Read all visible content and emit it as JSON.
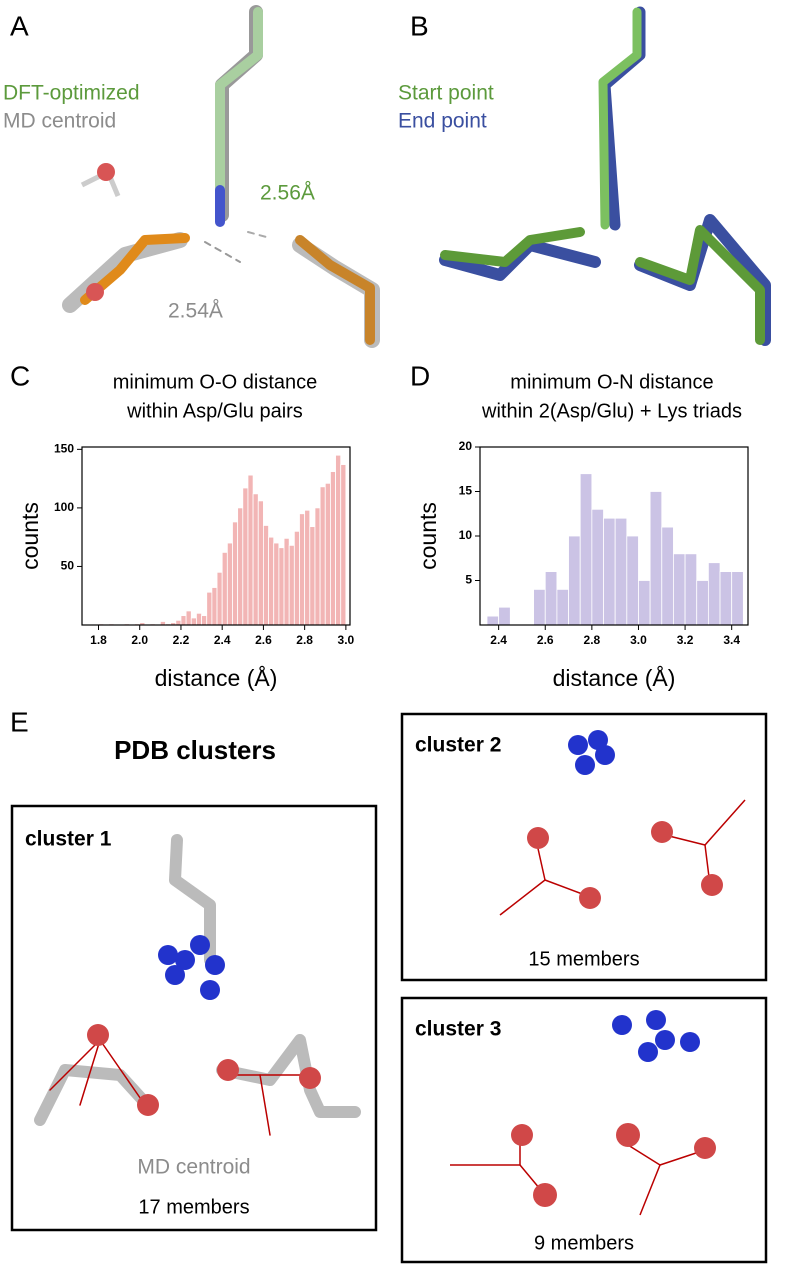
{
  "panel_a": {
    "letter": "A",
    "legend": [
      "DFT-optimized",
      "MD centroid"
    ],
    "distance_green": "2.56Å",
    "distance_gray": "2.54Å"
  },
  "panel_b": {
    "letter": "B",
    "legend": [
      "Start point",
      "End point"
    ]
  },
  "panel_c": {
    "letter": "C"
  },
  "panel_d": {
    "letter": "D"
  },
  "chart_data": [
    {
      "type": "histogram",
      "title": [
        "minimum O-O distance",
        "within Asp/Glu pairs"
      ],
      "x_label": "distance (Å)",
      "y_label": "counts",
      "color": "#f2b5b5",
      "bins": [
        1.75,
        1.775,
        1.8,
        1.825,
        1.85,
        1.875,
        1.9,
        1.925,
        1.95,
        1.975,
        2.0,
        2.025,
        2.05,
        2.075,
        2.1,
        2.125,
        2.15,
        2.175,
        2.2,
        2.225,
        2.25,
        2.275,
        2.3,
        2.325,
        2.35,
        2.375,
        2.4,
        2.425,
        2.45,
        2.475,
        2.5,
        2.525,
        2.55,
        2.575,
        2.6,
        2.625,
        2.65,
        2.675,
        2.7,
        2.725,
        2.75,
        2.775,
        2.8,
        2.825,
        2.85,
        2.875,
        2.9,
        2.925,
        2.95,
        2.975,
        3.0
      ],
      "values": [
        0,
        0,
        1,
        0,
        1,
        0,
        0,
        1,
        0,
        1,
        2,
        0,
        1,
        0,
        3,
        1,
        2,
        4,
        8,
        12,
        6,
        10,
        8,
        28,
        32,
        45,
        62,
        70,
        88,
        100,
        117,
        128,
        112,
        106,
        85,
        75,
        70,
        66,
        74,
        68,
        80,
        95,
        98,
        84,
        100,
        118,
        121,
        131,
        145,
        137
      ],
      "xlim": [
        1.72,
        3.02
      ],
      "ylim": [
        0,
        152
      ],
      "xticks": [
        1.8,
        {
          "value": 2,
          "label": "2.0"
        },
        2.2,
        2.4,
        2.6,
        2.8,
        {
          "value": 3,
          "label": "3.0"
        }
      ],
      "yticks": [
        50,
        100,
        150
      ]
    },
    {
      "type": "histogram",
      "title": [
        "minimum O-N distance",
        "within 2(Asp/Glu) + Lys triads"
      ],
      "x_label": "distance (Å)",
      "y_label": "counts",
      "color": "#cbc3e5",
      "bins": [
        2.35,
        2.4,
        2.45,
        2.5,
        2.55,
        2.6,
        2.65,
        2.7,
        2.75,
        2.8,
        2.85,
        2.9,
        2.95,
        3.0,
        3.05,
        3.1,
        3.15,
        3.2,
        3.25,
        3.3,
        3.35,
        3.4,
        3.45
      ],
      "values": [
        1,
        2,
        0,
        0,
        4,
        6,
        4,
        10,
        17,
        13,
        12,
        12,
        10,
        5,
        15,
        11,
        8,
        8,
        5,
        7,
        6,
        6
      ],
      "xlim": [
        2.32,
        3.47
      ],
      "ylim": [
        0,
        20
      ],
      "xticks": [
        2.4,
        2.6,
        2.8,
        {
          "value": 3,
          "label": "3.0"
        },
        3.2,
        3.4
      ],
      "yticks": [
        5,
        10,
        15,
        20
      ]
    }
  ],
  "panel_e": {
    "letter": "E",
    "title": "PDB clusters",
    "clusters": [
      {
        "label": "cluster 1",
        "note": "MD centroid",
        "members": "17 members"
      },
      {
        "label": "cluster 2",
        "members": "15 members"
      },
      {
        "label": "cluster 3",
        "members": "9 members"
      }
    ]
  }
}
